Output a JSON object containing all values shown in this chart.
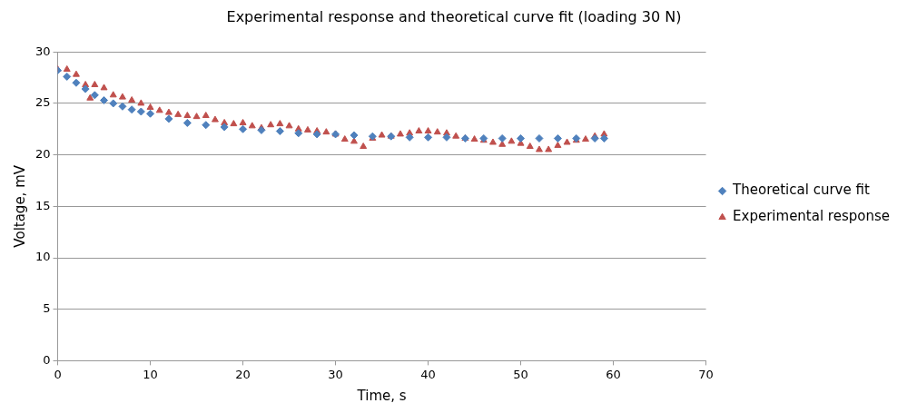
{
  "chart_data": {
    "type": "scatter",
    "title": "Experimental response and theoretical curve fit (loading 30 N)",
    "xlabel": "Time, s",
    "ylabel": "Voltage, mV",
    "xlim": [
      0,
      70
    ],
    "xticks": [
      0,
      10,
      20,
      30,
      40,
      50,
      60,
      70
    ],
    "ylim": [
      0,
      30
    ],
    "yticks": [
      0,
      5,
      10,
      15,
      20,
      25,
      30
    ],
    "grid": "y",
    "legend": "right",
    "series": [
      {
        "name": "Experimental response",
        "color": "#c0504d",
        "marker": "triangle",
        "x": [
          0,
          1,
          2,
          3,
          3.5,
          4,
          5,
          6,
          7,
          8,
          9,
          10,
          11,
          12,
          13,
          14,
          15,
          16,
          17,
          18,
          19,
          20,
          21,
          22,
          23,
          24,
          25,
          26,
          27,
          28,
          29,
          30,
          31,
          32,
          33,
          34,
          35,
          36,
          37,
          38,
          39,
          40,
          41,
          42,
          43,
          44,
          45,
          46,
          47,
          48,
          49,
          50,
          51,
          52,
          53,
          54,
          55,
          56,
          57,
          58,
          59
        ],
        "values": [
          28.3,
          28.3,
          27.8,
          26.8,
          25.5,
          26.8,
          26.5,
          25.8,
          25.6,
          25.3,
          25,
          24.6,
          24.3,
          24.1,
          23.9,
          23.8,
          23.7,
          23.8,
          23.4,
          23.1,
          23,
          23.1,
          22.8,
          22.6,
          22.9,
          23,
          22.8,
          22.5,
          22.4,
          22.3,
          22.2,
          22,
          21.5,
          21.3,
          20.8,
          21.6,
          21.9,
          21.8,
          22,
          22.1,
          22.3,
          22.3,
          22.2,
          22.1,
          21.8,
          21.6,
          21.5,
          21.4,
          21.2,
          21,
          21.3,
          21.1,
          20.8,
          20.5,
          20.5,
          20.9,
          21.2,
          21.4,
          21.5,
          21.8,
          22
        ]
      },
      {
        "name": "Theoretical curve fit",
        "color": "#4f81bd",
        "marker": "diamond",
        "x": [
          0,
          1,
          2,
          3,
          4,
          5,
          6,
          7,
          8,
          9,
          10,
          12,
          14,
          16,
          18,
          20,
          22,
          24,
          26,
          28,
          30,
          32,
          34,
          36,
          38,
          40,
          42,
          44,
          46,
          48,
          50,
          52,
          54,
          56,
          58,
          59
        ],
        "values": [
          28.2,
          27.6,
          27,
          26.4,
          25.8,
          25.3,
          25,
          24.7,
          24.4,
          24.2,
          24,
          23.5,
          23.1,
          22.9,
          22.7,
          22.5,
          22.4,
          22.3,
          22.1,
          22,
          22,
          21.9,
          21.8,
          21.8,
          21.7,
          21.7,
          21.7,
          21.6,
          21.6,
          21.6,
          21.6,
          21.6,
          21.6,
          21.6,
          21.6,
          21.6
        ]
      }
    ]
  }
}
